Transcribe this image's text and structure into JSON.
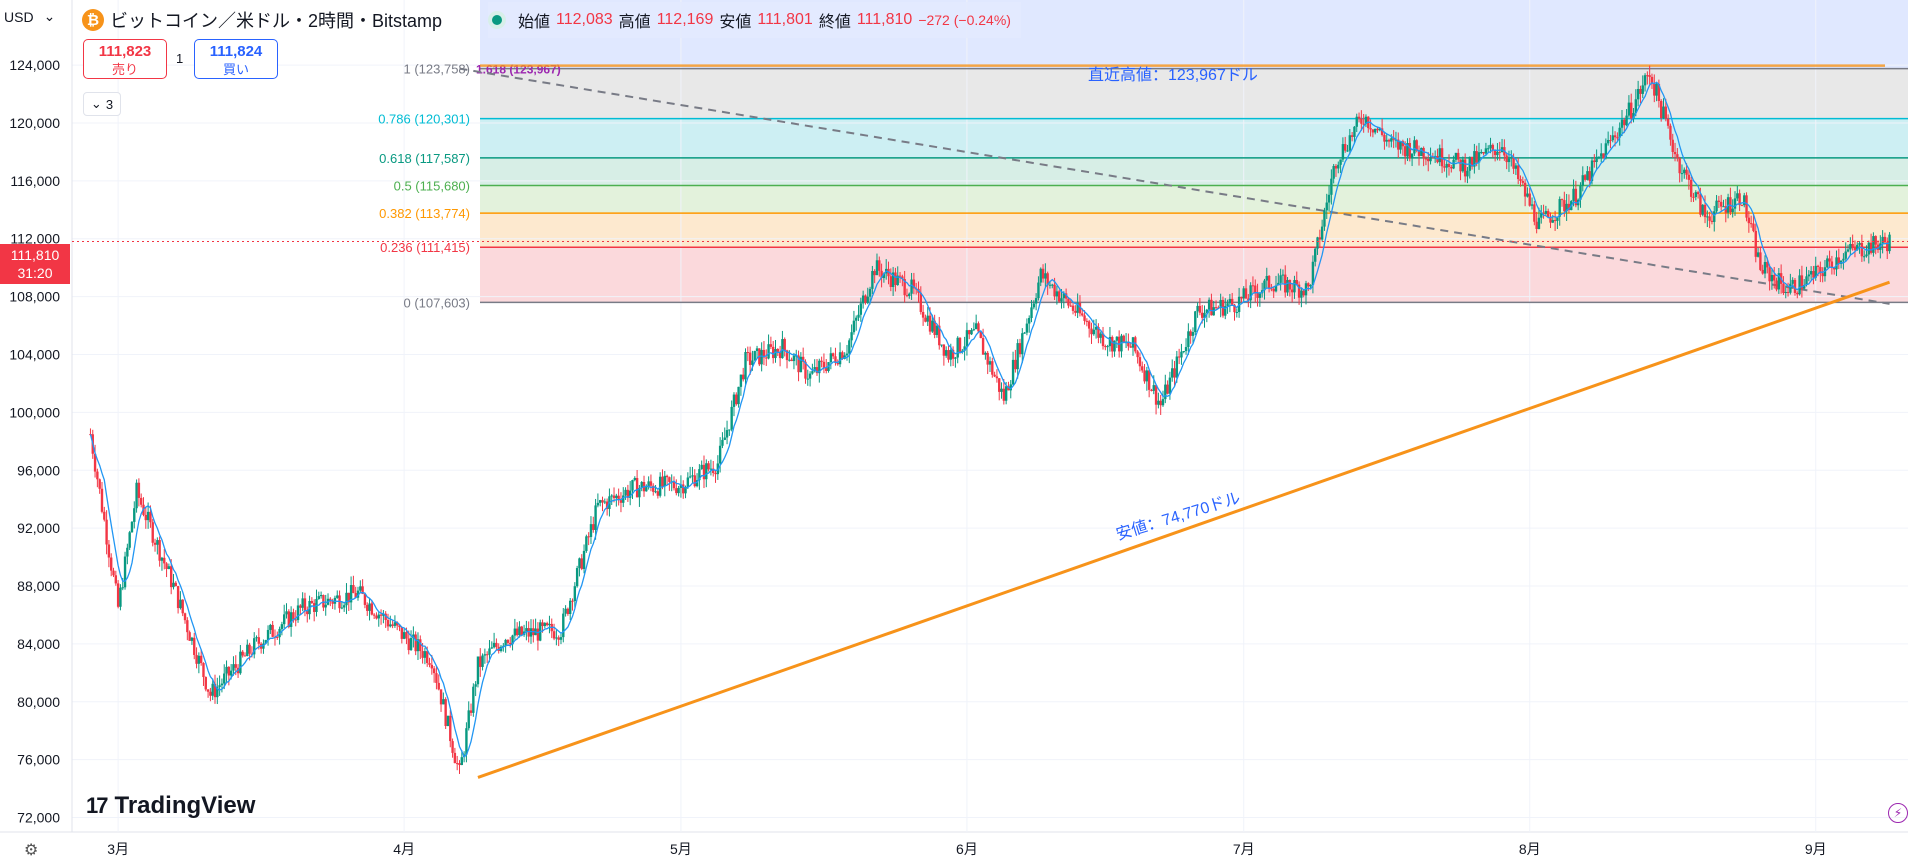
{
  "header": {
    "currency": "USD",
    "title": "ビットコイン／米ドル・2時間・Bitstamp",
    "ohlc": [
      {
        "label": "始値",
        "value": "112,083"
      },
      {
        "label": "高値",
        "value": "112,169"
      },
      {
        "label": "安値",
        "value": "111,801"
      },
      {
        "label": "終値",
        "value": "111,810"
      }
    ],
    "change": "−272 (−0.24%)"
  },
  "trade": {
    "sell_price": "111,823",
    "sell_label": "売り",
    "quantity": "1",
    "buy_price": "111,824",
    "buy_label": "買い",
    "indicator_count": "3"
  },
  "price_tag": {
    "price": "111,810",
    "countdown": "31:20"
  },
  "logo_text": "TradingView",
  "colors": {
    "up": "#089981",
    "down": "#f23645",
    "trendline": "#f7931a",
    "fib_band_top": "#dde6ff"
  },
  "chart_data": {
    "type": "candlestick",
    "title": "ビットコイン／米ドル・2時間・Bitstamp",
    "y_ticks": [
      "124,000",
      "120,000",
      "116,000",
      "112,000",
      "108,000",
      "104,000",
      "100,000",
      "96,000",
      "92,000",
      "88,000",
      "84,000",
      "80,000",
      "76,000",
      "72,000"
    ],
    "ylim": [
      71000,
      128500
    ],
    "x_ticks": [
      "3月",
      "4月",
      "5月",
      "6月",
      "7月",
      "8月",
      "9月"
    ],
    "series": [
      {
        "name": "BTC/USD",
        "x": [
          "2025-02-26",
          "2025-03-01",
          "2025-03-03",
          "2025-03-07",
          "2025-03-11",
          "2025-03-16",
          "2025-03-21",
          "2025-03-27",
          "2025-04-01",
          "2025-04-04",
          "2025-04-07",
          "2025-04-09",
          "2025-04-12",
          "2025-04-18",
          "2025-04-22",
          "2025-04-26",
          "2025-05-01",
          "2025-05-05",
          "2025-05-08",
          "2025-05-12",
          "2025-05-15",
          "2025-05-19",
          "2025-05-22",
          "2025-05-26",
          "2025-05-30",
          "2025-06-02",
          "2025-06-05",
          "2025-06-09",
          "2025-06-12",
          "2025-06-16",
          "2025-06-19",
          "2025-06-22",
          "2025-06-26",
          "2025-06-30",
          "2025-07-04",
          "2025-07-08",
          "2025-07-11",
          "2025-07-14",
          "2025-07-17",
          "2025-07-21",
          "2025-07-25",
          "2025-07-29",
          "2025-08-02",
          "2025-08-06",
          "2025-08-09",
          "2025-08-12",
          "2025-08-14",
          "2025-08-17",
          "2025-08-20",
          "2025-08-24",
          "2025-08-26",
          "2025-08-29",
          "2025-09-01",
          "2025-09-04",
          "2025-09-09"
        ],
        "values": [
          98500,
          86500,
          94500,
          88000,
          80500,
          84000,
          86500,
          87500,
          84500,
          83000,
          75000,
          82500,
          84500,
          85000,
          93500,
          94800,
          95000,
          96500,
          103500,
          104500,
          102500,
          104500,
          110000,
          108500,
          104000,
          105500,
          101000,
          109500,
          107500,
          105000,
          104500,
          100500,
          107000,
          107500,
          109000,
          108500,
          117500,
          120500,
          118500,
          118000,
          117000,
          118500,
          113000,
          115000,
          118000,
          121000,
          123500,
          117500,
          113500,
          115000,
          110000,
          108500,
          109500,
          111000,
          111810
        ]
      }
    ],
    "ohlc_last": {
      "open": 112083,
      "high": 112169,
      "low": 111801,
      "close": 111810,
      "change": -272,
      "change_pct": -0.24
    },
    "fibonacci": [
      {
        "level": "1",
        "price": 123758,
        "label": "1 (123,758)",
        "color": "#787b86"
      },
      {
        "level": "0.786",
        "price": 120301,
        "label": "0.786 (120,301)",
        "color": "#00bcd4"
      },
      {
        "level": "0.618",
        "price": 117587,
        "label": "0.618 (117,587)",
        "color": "#089981"
      },
      {
        "level": "0.5",
        "price": 115680,
        "label": "0.5 (115,680)",
        "color": "#4caf50"
      },
      {
        "level": "0.382",
        "price": 113774,
        "label": "0.382 (113,774)",
        "color": "#ff9800"
      },
      {
        "level": "0.236",
        "price": 111415,
        "label": "0.236 (111,415)",
        "color": "#f23645"
      },
      {
        "level": "0",
        "price": 107603,
        "label": "0 (107,603)",
        "color": "#787b86"
      }
    ],
    "fib_extra_label": "1.618 (123,967)",
    "annotations": [
      {
        "text": "直近高値：123,967ドル",
        "price": 123967
      },
      {
        "text": "安値：74,770ドル",
        "price": 74770
      }
    ],
    "trendline_support": {
      "from": {
        "x": "2025-04-09",
        "y": 74770
      },
      "to": {
        "x": "2025-09-09",
        "y": 109000
      }
    },
    "trendline_resistance": {
      "from": {
        "x": "2025-04-07",
        "y": 123758
      },
      "to": {
        "x": "2025-09-09",
        "y": 107500
      }
    },
    "current_price": 111810,
    "grid": true
  }
}
